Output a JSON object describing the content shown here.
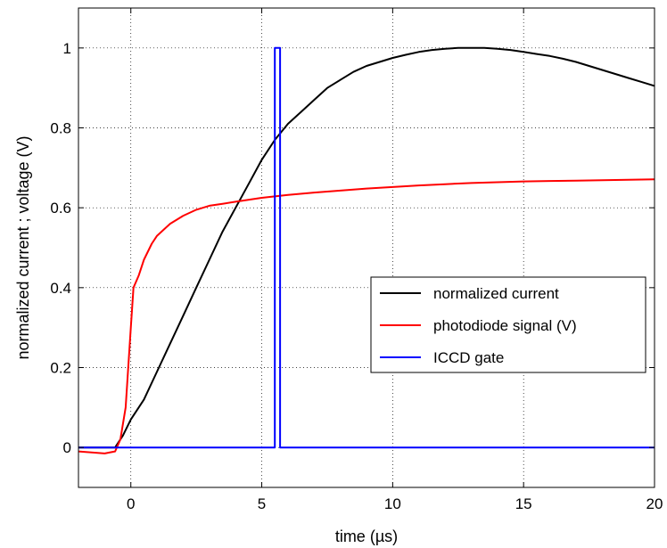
{
  "chart_data": {
    "type": "line",
    "xlabel": "time (µs)",
    "ylabel": "normalized current ; voltage (V)",
    "xlim": [
      -2,
      20
    ],
    "ylim": [
      -0.1,
      1.1
    ],
    "x_ticks": [
      0,
      5,
      10,
      15,
      20
    ],
    "x_tick_labels": [
      "0",
      "5",
      "10",
      "15",
      "20"
    ],
    "y_ticks": [
      0,
      0.2,
      0.4,
      0.6,
      0.8,
      1
    ],
    "y_tick_labels": [
      "0",
      "0.2",
      "0.4",
      "0.6",
      "0.8",
      "1"
    ],
    "grid": true,
    "legend_position": "center-right",
    "series": [
      {
        "name": "normalized current",
        "color": "#000000",
        "x": [
          -2,
          -1,
          -0.6,
          -0.3,
          0,
          0.5,
          1,
          1.5,
          2,
          2.5,
          3,
          3.5,
          4,
          4.5,
          5,
          5.5,
          6,
          6.5,
          7,
          7.5,
          8,
          8.5,
          9,
          9.5,
          10,
          10.5,
          11,
          11.5,
          12,
          12.5,
          13,
          13.5,
          14,
          14.5,
          15,
          15.5,
          16,
          16.5,
          17,
          17.5,
          18,
          18.5,
          19,
          19.5,
          20
        ],
        "y": [
          0,
          0,
          0,
          0.03,
          0.07,
          0.12,
          0.19,
          0.26,
          0.33,
          0.4,
          0.47,
          0.54,
          0.6,
          0.66,
          0.72,
          0.77,
          0.81,
          0.84,
          0.87,
          0.9,
          0.92,
          0.94,
          0.955,
          0.965,
          0.975,
          0.983,
          0.99,
          0.995,
          0.998,
          1.0,
          1.0,
          1.0,
          0.998,
          0.995,
          0.99,
          0.985,
          0.98,
          0.973,
          0.965,
          0.955,
          0.945,
          0.935,
          0.925,
          0.915,
          0.905
        ]
      },
      {
        "name": "photodiode signal (V)",
        "color": "#ff0000",
        "x": [
          -2,
          -1,
          -0.6,
          -0.4,
          -0.2,
          0,
          0.1,
          0.3,
          0.5,
          0.8,
          1,
          1.5,
          2,
          2.5,
          3,
          3.5,
          4,
          5,
          6,
          7,
          8,
          9,
          10,
          11,
          12,
          13,
          14,
          15,
          16,
          17,
          18,
          19,
          20
        ],
        "y": [
          -0.01,
          -0.015,
          -0.01,
          0.02,
          0.1,
          0.3,
          0.4,
          0.43,
          0.47,
          0.51,
          0.53,
          0.56,
          0.58,
          0.595,
          0.605,
          0.61,
          0.615,
          0.625,
          0.632,
          0.638,
          0.643,
          0.648,
          0.652,
          0.656,
          0.659,
          0.662,
          0.664,
          0.666,
          0.667,
          0.668,
          0.669,
          0.67,
          0.671
        ]
      },
      {
        "name": "ICCD gate",
        "color": "#0000ff",
        "x": [
          -2,
          5.5,
          5.5,
          5.7,
          5.7,
          20
        ],
        "y": [
          0,
          0,
          1,
          1,
          0,
          0
        ]
      }
    ]
  }
}
